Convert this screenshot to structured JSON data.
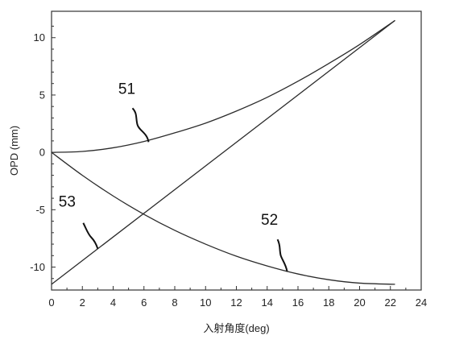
{
  "chart_data": {
    "type": "line",
    "xlabel": "入射角度(deg)",
    "ylabel": "OPD (mm)",
    "xlim": [
      0,
      24
    ],
    "ylim": [
      -12,
      12.3
    ],
    "xticks": [
      0,
      2,
      4,
      6,
      8,
      10,
      12,
      14,
      16,
      18,
      20,
      22,
      24
    ],
    "yticks": [
      10,
      5,
      0,
      -5,
      -10
    ],
    "grid": false,
    "legend": "none",
    "line_color": "#2b2b2b",
    "series": [
      {
        "name": "51",
        "x": [
          0,
          2,
          4,
          6,
          8,
          10,
          12,
          14,
          16,
          18,
          20,
          22.3
        ],
        "y": [
          0,
          0.08,
          0.4,
          0.95,
          1.7,
          2.55,
          3.6,
          4.8,
          6.2,
          7.75,
          9.4,
          11.5
        ]
      },
      {
        "name": "52",
        "x": [
          0,
          2,
          4,
          6,
          8,
          10,
          12,
          14,
          16,
          18,
          20,
          22.3
        ],
        "y": [
          0,
          -2.0,
          -3.8,
          -5.4,
          -6.8,
          -8.0,
          -9.05,
          -9.9,
          -10.6,
          -11.1,
          -11.4,
          -11.5
        ]
      },
      {
        "name": "53",
        "x": [
          0,
          22.3
        ],
        "y": [
          -11.5,
          11.5
        ]
      }
    ],
    "annotations": [
      {
        "label": "51",
        "series": "51",
        "x": 6.3,
        "y": 0.9
      },
      {
        "label": "52",
        "series": "52",
        "x": 15.3,
        "y": -10.4
      },
      {
        "label": "53",
        "series": "53",
        "x": 3.0,
        "y": -8.4
      }
    ]
  }
}
